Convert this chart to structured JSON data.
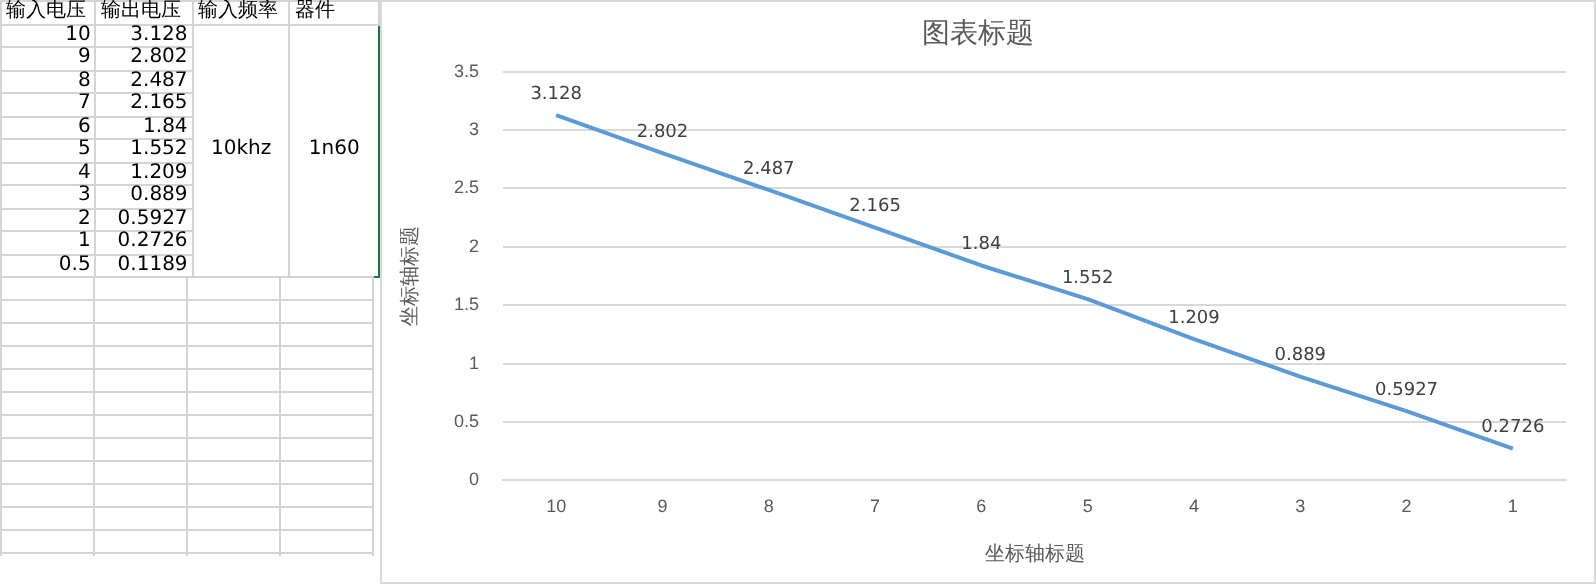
{
  "chart_data": [
    {
      "type": "other",
      "categories": [
        "输入电压",
        "输出电压",
        "输入频率",
        "器件"
      ],
      "annotations": [
        "10",
        "3.128",
        "9",
        "2.802",
        "8",
        "2.487",
        "7",
        "2.165",
        "6",
        "1.84",
        "5",
        "1.552",
        "4",
        "1.209",
        "3",
        "0.889",
        "2",
        "0.5927",
        "1",
        "0.2726",
        "0.5",
        "0.1189",
        "10khz",
        "1n60"
      ]
    },
    {
      "type": "line",
      "title": "图表标题",
      "xlabel": "坐标轴标题",
      "ylabel": "坐标轴标题",
      "categories": [
        "10",
        "9",
        "8",
        "7",
        "6",
        "5",
        "4",
        "3",
        "2",
        "1"
      ],
      "series": [
        {
          "color": "#5b9bd5",
          "values": [
            3.128,
            2.802,
            2.487,
            2.165,
            1.84,
            1.552,
            1.209,
            0.889,
            0.5927,
            0.2726
          ]
        }
      ],
      "ylim": [
        0,
        3.5
      ],
      "yticks": [
        0,
        0.5,
        1,
        1.5,
        2,
        2.5,
        3,
        3.5
      ],
      "grid": "y",
      "data_labels": true,
      "marker": "none"
    }
  ]
}
